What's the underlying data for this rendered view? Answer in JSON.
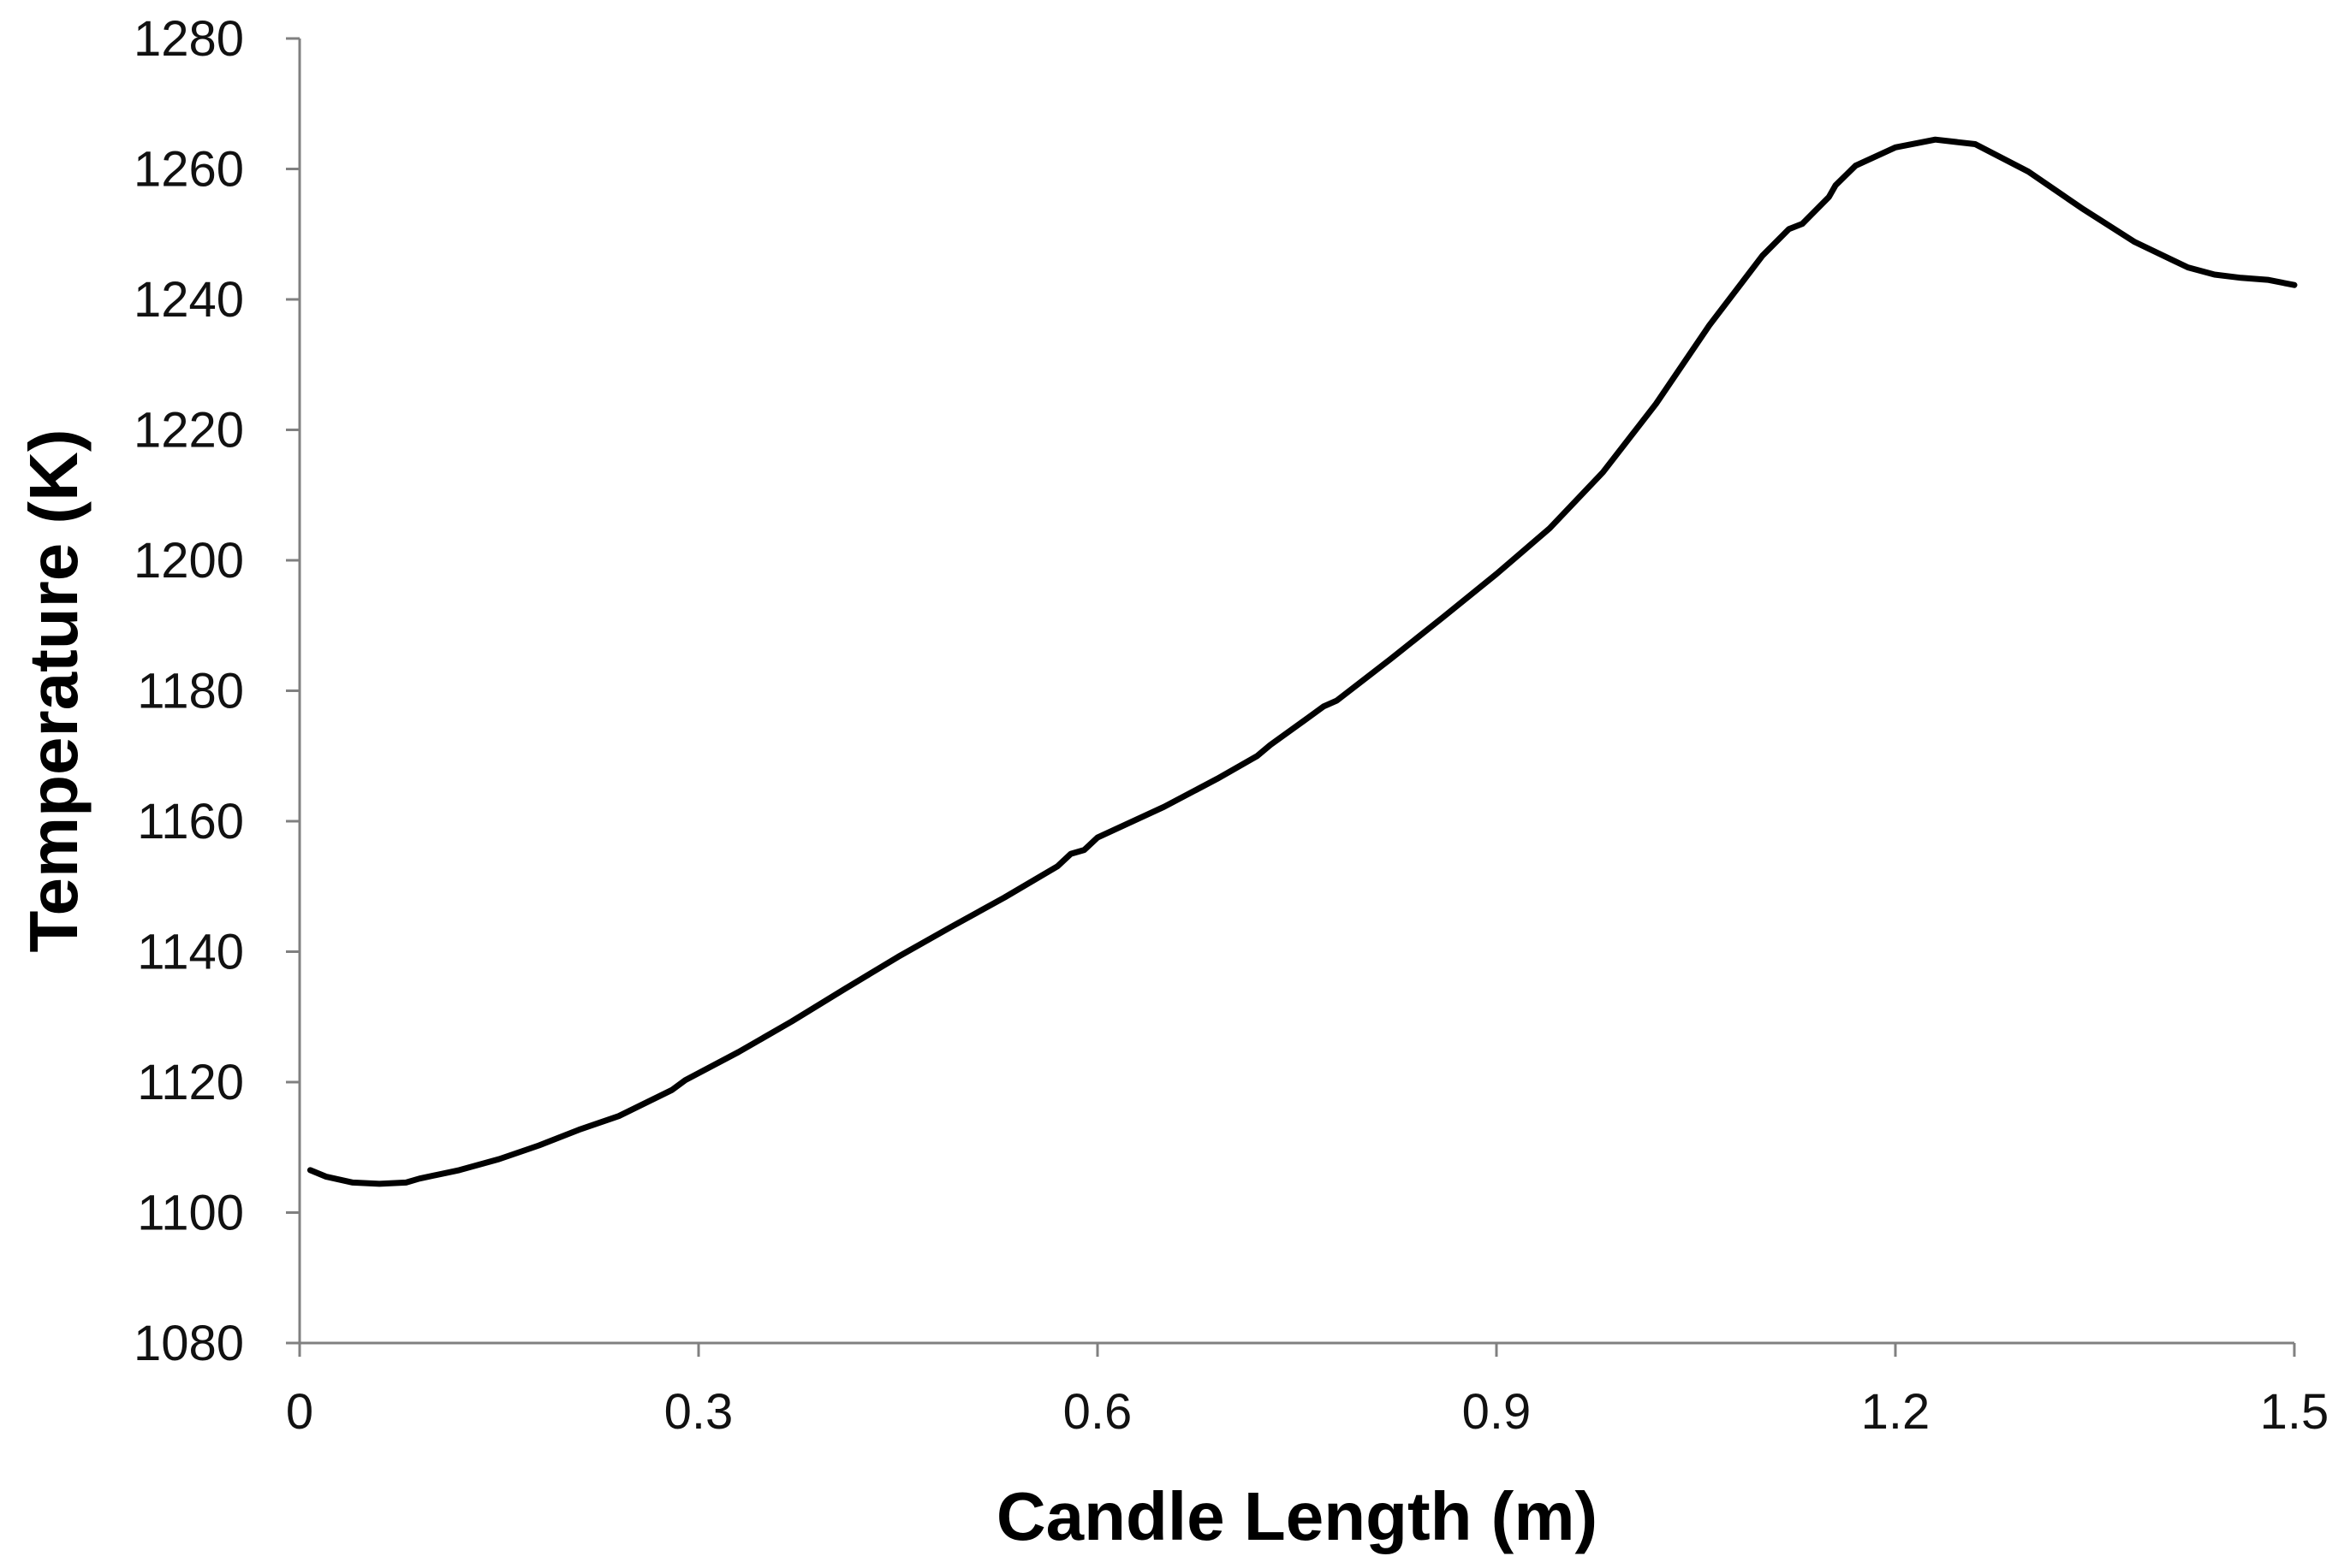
{
  "chart_data": {
    "type": "line",
    "title": "",
    "xlabel": "Candle Length (m)",
    "ylabel": "Temperature (K)",
    "xlim": [
      0,
      1.5
    ],
    "ylim": [
      1080,
      1280
    ],
    "xticks": [
      "0",
      "0.3",
      "0.6",
      "0.9",
      "1.2",
      "1.5"
    ],
    "yticks": [
      "1080",
      "1100",
      "1120",
      "1140",
      "1160",
      "1180",
      "1200",
      "1220",
      "1240",
      "1260",
      "1280"
    ],
    "grid": false,
    "legend": "none",
    "line_color": "#000000",
    "series": [
      {
        "x": [
          0.008,
          0.02,
          0.04,
          0.06,
          0.08,
          0.09,
          0.12,
          0.15,
          0.18,
          0.21,
          0.24,
          0.28,
          0.29,
          0.33,
          0.37,
          0.41,
          0.45,
          0.49,
          0.53,
          0.57,
          0.58,
          0.59,
          0.6,
          0.65,
          0.69,
          0.72,
          0.73,
          0.76,
          0.77,
          0.78,
          0.82,
          0.86,
          0.9,
          0.94,
          0.98,
          1.02,
          1.06,
          1.1,
          1.12,
          1.13,
          1.15,
          1.155,
          1.17,
          1.2,
          1.23,
          1.26,
          1.3,
          1.34,
          1.38,
          1.42,
          1.44,
          1.46,
          1.48,
          1.5
        ],
        "y": [
          1106.5,
          1105.5,
          1104.6,
          1104.4,
          1104.6,
          1105.2,
          1106.5,
          1108.2,
          1110.3,
          1112.7,
          1114.8,
          1118.8,
          1120.3,
          1124.6,
          1129.3,
          1134.3,
          1139.2,
          1143.8,
          1148.3,
          1153.1,
          1155,
          1155.6,
          1157.5,
          1162.2,
          1166.5,
          1170,
          1171.7,
          1176.1,
          1177.6,
          1178.5,
          1184.8,
          1191.3,
          1197.9,
          1204.9,
          1213.5,
          1224,
          1236,
          1246.7,
          1250.8,
          1251.6,
          1255.7,
          1257.5,
          1260.5,
          1263.3,
          1264.5,
          1263.8,
          1259.6,
          1254,
          1248.8,
          1244.9,
          1243.8,
          1243.3,
          1243,
          1242.2
        ]
      }
    ]
  }
}
